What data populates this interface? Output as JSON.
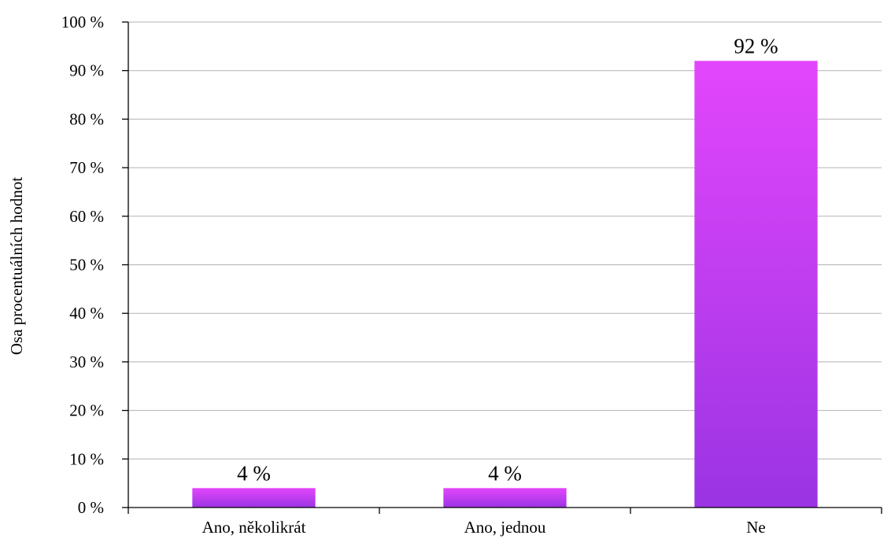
{
  "chart_data": {
    "type": "bar",
    "categories": [
      "Ano, několikrát",
      "Ano, jednou",
      "Ne"
    ],
    "values": [
      4,
      4,
      92
    ],
    "data_labels": [
      "4 %",
      "4 %",
      "92 %"
    ],
    "title": "",
    "xlabel": "",
    "ylabel": "Osa procentuálních hodnot",
    "ylim": [
      0,
      100
    ],
    "y_ticks": [
      0,
      10,
      20,
      30,
      40,
      50,
      60,
      70,
      80,
      90,
      100
    ],
    "y_tick_labels": [
      "0 %",
      "10 %",
      "20 %",
      "30 %",
      "40 %",
      "50 %",
      "60 %",
      "70 %",
      "80 %",
      "90 %",
      "100 %"
    ],
    "grid": true,
    "legend": "none",
    "bar_gradient": {
      "top": "#e346fc",
      "bottom": "#9a34e3"
    }
  }
}
